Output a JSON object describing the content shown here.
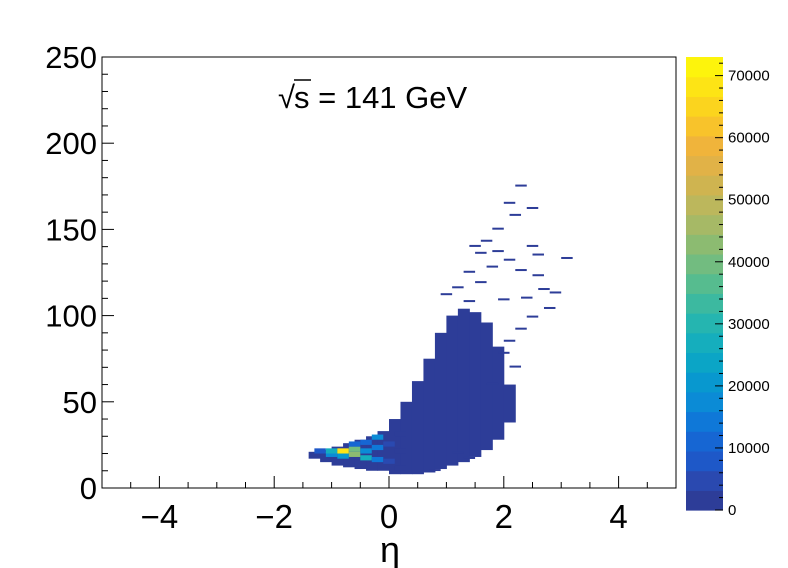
{
  "chart_data": {
    "type": "heatmap",
    "title": "",
    "annotation": {
      "prefix": "√",
      "text": "s = 141 GeV"
    },
    "xlabel": "η",
    "ylabel": "",
    "xlim": [
      -5,
      5
    ],
    "ylim": [
      0,
      250
    ],
    "x_ticks": [
      -4,
      -2,
      0,
      2,
      4
    ],
    "x_tick_labels": [
      "−4",
      "−2",
      "0",
      "2",
      "4"
    ],
    "y_ticks": [
      0,
      50,
      100,
      150,
      200,
      250
    ],
    "y_tick_labels": [
      "0",
      "50",
      "100",
      "150",
      "200",
      "250"
    ],
    "colorbar": {
      "range": [
        0,
        73000
      ],
      "ticks": [
        0,
        10000,
        20000,
        30000,
        40000,
        50000,
        60000,
        70000
      ],
      "tick_labels": [
        "0",
        "10000",
        "20000",
        "30000",
        "40000",
        "50000",
        "60000",
        "70000"
      ],
      "palette": [
        "#2d3d98",
        "#2a49b0",
        "#1e58c8",
        "#1666d3",
        "#0f78d8",
        "#0b8bd6",
        "#0898cf",
        "#0ba5c6",
        "#15aebd",
        "#25b5b0",
        "#3cb9a0",
        "#56bc8f",
        "#72bc80",
        "#8cbb71",
        "#a6b966",
        "#bcb75c",
        "#cfb450",
        "#e1b247",
        "#f0b43b",
        "#f8c32b",
        "#fbd41e",
        "#fde415",
        "#fdf40c"
      ]
    },
    "grid": false,
    "legend": "none",
    "bins": [
      {
        "x": -1.2,
        "y": 20,
        "value": 9000
      },
      {
        "x": -1.0,
        "y": 18,
        "value": 16000
      },
      {
        "x": -1.0,
        "y": 20,
        "value": 26000
      },
      {
        "x": -0.8,
        "y": 17,
        "value": 22000
      },
      {
        "x": -0.8,
        "y": 20,
        "value": 68000
      },
      {
        "x": -0.6,
        "y": 18,
        "value": 42000
      },
      {
        "x": -0.6,
        "y": 21,
        "value": 40000
      },
      {
        "x": -0.6,
        "y": 24,
        "value": 12000
      },
      {
        "x": -0.4,
        "y": 16,
        "value": 28000
      },
      {
        "x": -0.4,
        "y": 20,
        "value": 18000
      },
      {
        "x": -0.4,
        "y": 25,
        "value": 10000
      },
      {
        "x": -0.2,
        "y": 15,
        "value": 14000
      },
      {
        "x": -0.2,
        "y": 22,
        "value": 13000
      },
      {
        "x": -0.2,
        "y": 28,
        "value": 16000
      },
      {
        "x": 0.0,
        "y": 14,
        "value": 5000
      },
      {
        "x": 0.0,
        "y": 24,
        "value": 4000
      },
      {
        "x": 0.2,
        "y": 10,
        "value": 2000
      },
      {
        "x": 0.2,
        "y": 20,
        "value": 3000
      },
      {
        "x": 0.2,
        "y": 30,
        "value": 2000
      }
    ],
    "envelope": {
      "core_value": 800,
      "edge_value": 100,
      "x_steps": [
        -1.3,
        -1.1,
        -0.9,
        -0.7,
        -0.5,
        -0.3,
        -0.1,
        0.1,
        0.3,
        0.5,
        0.7,
        0.9,
        1.1,
        1.3,
        1.5,
        1.7,
        1.9,
        2.1
      ],
      "y_low": [
        17,
        15,
        13,
        12,
        11,
        10,
        10,
        8,
        8,
        8,
        9,
        11,
        13,
        15,
        18,
        22,
        28,
        38
      ],
      "y_high": [
        21,
        22,
        24,
        26,
        28,
        30,
        33,
        40,
        50,
        62,
        75,
        90,
        100,
        104,
        102,
        96,
        82,
        60
      ]
    },
    "outliers": [
      {
        "x": 2.3,
        "y": 175
      },
      {
        "x": 2.1,
        "y": 165
      },
      {
        "x": 2.5,
        "y": 162
      },
      {
        "x": 2.2,
        "y": 158
      },
      {
        "x": 1.9,
        "y": 150
      },
      {
        "x": 1.7,
        "y": 143
      },
      {
        "x": 1.5,
        "y": 140
      },
      {
        "x": 1.6,
        "y": 136
      },
      {
        "x": 2.5,
        "y": 140
      },
      {
        "x": 1.9,
        "y": 137
      },
      {
        "x": 3.1,
        "y": 133
      },
      {
        "x": 2.6,
        "y": 135
      },
      {
        "x": 2.1,
        "y": 132
      },
      {
        "x": 1.8,
        "y": 128
      },
      {
        "x": 2.3,
        "y": 126
      },
      {
        "x": 1.4,
        "y": 125
      },
      {
        "x": 2.6,
        "y": 123
      },
      {
        "x": 1.6,
        "y": 119
      },
      {
        "x": 2.7,
        "y": 115
      },
      {
        "x": 2.9,
        "y": 113
      },
      {
        "x": 2.4,
        "y": 110
      },
      {
        "x": 2.0,
        "y": 109
      },
      {
        "x": 2.8,
        "y": 104
      },
      {
        "x": 1.2,
        "y": 116
      },
      {
        "x": 1.0,
        "y": 112
      },
      {
        "x": 2.5,
        "y": 99
      },
      {
        "x": 1.4,
        "y": 108
      },
      {
        "x": 2.3,
        "y": 92
      },
      {
        "x": 2.1,
        "y": 85
      },
      {
        "x": 2.0,
        "y": 78
      },
      {
        "x": 2.2,
        "y": 70
      },
      {
        "x": 1.8,
        "y": 60
      },
      {
        "x": 1.2,
        "y": 20
      },
      {
        "x": 1.4,
        "y": 17
      },
      {
        "x": 0.8,
        "y": 10
      }
    ]
  }
}
